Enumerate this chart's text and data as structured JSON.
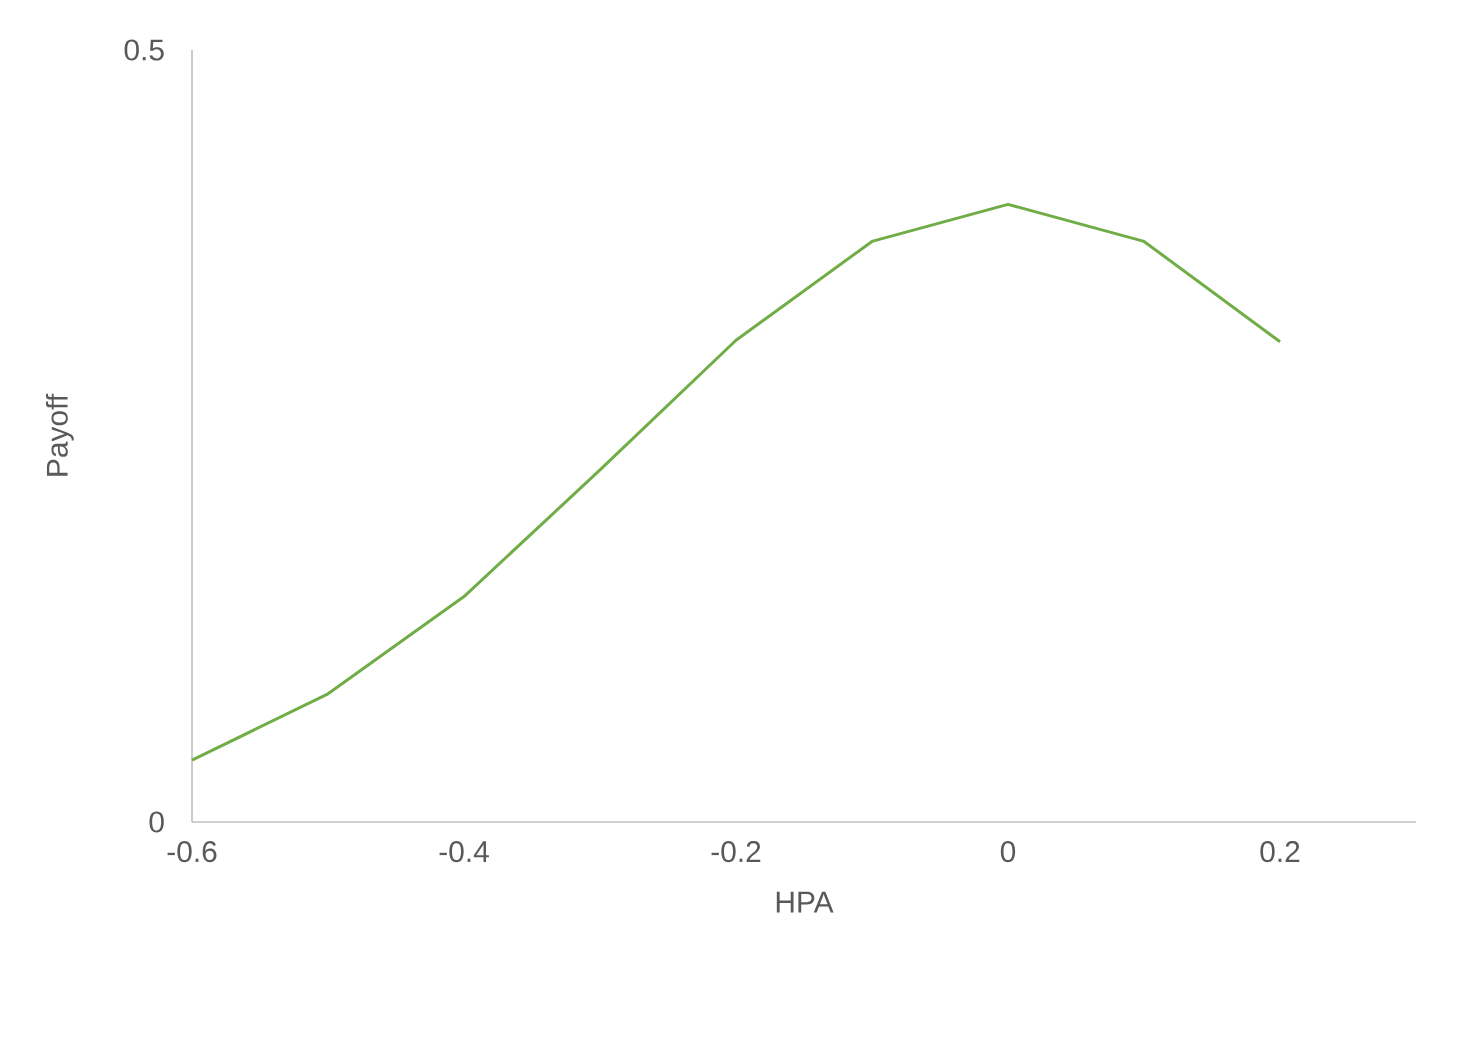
{
  "chart_data": {
    "type": "line",
    "xlabel": "HPA",
    "ylabel": "Payoff",
    "x": [
      -0.6,
      -0.5,
      -0.4,
      -0.3,
      -0.2,
      -0.1,
      0,
      0.1,
      0.2
    ],
    "series": [
      {
        "color": "#70ad47",
        "values": [
          0.04,
          0.083,
          0.146,
          0.228,
          0.312,
          0.376,
          0.4,
          0.376,
          0.311
        ]
      }
    ],
    "xlim": [
      -0.6,
      0.3
    ],
    "ylim": [
      0,
      0.5
    ],
    "xticks": [
      -0.6,
      -0.4,
      -0.2,
      0,
      0.2
    ],
    "yticks": [
      0,
      0.5
    ],
    "grid": false,
    "marker": "none",
    "line_style": "solid"
  }
}
